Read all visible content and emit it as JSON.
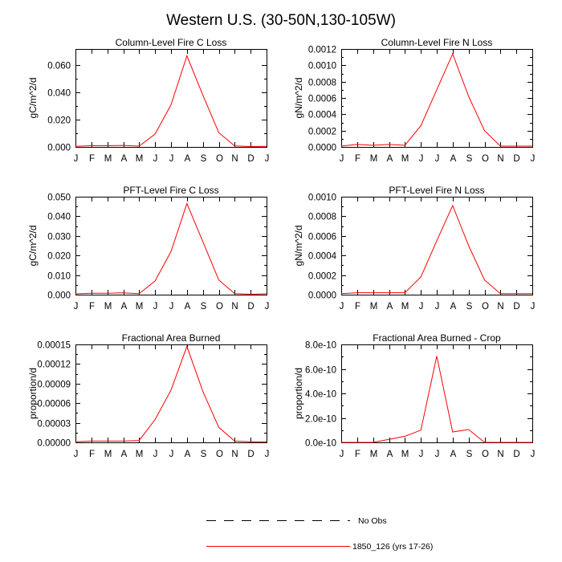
{
  "figure": {
    "title": "Western U.S. (30-50N,130-105W)"
  },
  "legend": {
    "entries": [
      {
        "name": "No Obs",
        "style": "dashed",
        "color": "#000000"
      },
      {
        "name": "1850_126 (yrs 17-26)",
        "style": "solid",
        "color": "#ff0000"
      }
    ]
  },
  "chart_data": [
    {
      "type": "line",
      "title": "Column-Level Fire C Loss",
      "xlabel": "",
      "ylabel": "gC/m^2/d",
      "categories": [
        "J",
        "F",
        "M",
        "A",
        "M",
        "J",
        "J",
        "A",
        "S",
        "O",
        "N",
        "D",
        "J"
      ],
      "ylim": [
        0,
        0.072
      ],
      "yticks": [
        0,
        0.02,
        0.04,
        0.06
      ],
      "ytick_labels": [
        "0.000",
        "0.020",
        "0.040",
        "0.060"
      ],
      "series": [
        {
          "name": "1850_126 (yrs 17-26)",
          "color": "#ff0000",
          "values": [
            0.0005,
            0.0009,
            0.0009,
            0.0011,
            0.0006,
            0.0095,
            0.031,
            0.067,
            0.038,
            0.0105,
            0.0007,
            0.0003,
            0.0005
          ]
        }
      ]
    },
    {
      "type": "line",
      "title": "Column-Level Fire N Loss",
      "xlabel": "",
      "ylabel": "gN/m^2/d",
      "categories": [
        "J",
        "F",
        "M",
        "A",
        "M",
        "J",
        "J",
        "A",
        "S",
        "O",
        "N",
        "D",
        "J"
      ],
      "ylim": [
        0,
        0.0012
      ],
      "yticks": [
        0,
        0.0002,
        0.0004,
        0.0006,
        0.0008,
        0.001,
        0.0012
      ],
      "ytick_labels": [
        "0.0000",
        "0.0002",
        "0.0004",
        "0.0006",
        "0.0008",
        "0.0010",
        "0.0012"
      ],
      "series": [
        {
          "name": "1850_126 (yrs 17-26)",
          "color": "#ff0000",
          "values": [
            1e-05,
            3e-05,
            2e-05,
            3e-05,
            2e-05,
            0.00026,
            0.0007,
            0.00114,
            0.00062,
            0.0002,
            1e-05,
            1e-05,
            1e-05
          ]
        }
      ]
    },
    {
      "type": "line",
      "title": "PFT-Level Fire C Loss",
      "xlabel": "",
      "ylabel": "gC/m^2/d",
      "categories": [
        "J",
        "F",
        "M",
        "A",
        "M",
        "J",
        "J",
        "A",
        "S",
        "O",
        "N",
        "D",
        "J"
      ],
      "ylim": [
        0,
        0.05
      ],
      "yticks": [
        0,
        0.01,
        0.02,
        0.03,
        0.04,
        0.05
      ],
      "ytick_labels": [
        "0.000",
        "0.010",
        "0.020",
        "0.030",
        "0.040",
        "0.050"
      ],
      "series": [
        {
          "name": "1850_126 (yrs 17-26)",
          "color": "#ff0000",
          "values": [
            0.0004,
            0.0007,
            0.0007,
            0.0009,
            0.0005,
            0.007,
            0.022,
            0.0465,
            0.027,
            0.0075,
            0.0005,
            0.0002,
            0.0004
          ]
        }
      ]
    },
    {
      "type": "line",
      "title": "PFT-Level Fire N Loss",
      "xlabel": "",
      "ylabel": "gN/m^2/d",
      "categories": [
        "J",
        "F",
        "M",
        "A",
        "M",
        "J",
        "J",
        "A",
        "S",
        "O",
        "N",
        "D",
        "J"
      ],
      "ylim": [
        0,
        0.001
      ],
      "yticks": [
        0,
        0.0002,
        0.0004,
        0.0006,
        0.0008,
        0.001
      ],
      "ytick_labels": [
        "0.0000",
        "0.0002",
        "0.0004",
        "0.0006",
        "0.0008",
        "0.0010"
      ],
      "series": [
        {
          "name": "1850_126 (yrs 17-26)",
          "color": "#ff0000",
          "values": [
            1e-05,
            2e-05,
            2e-05,
            2e-05,
            2e-05,
            0.00018,
            0.00055,
            0.00091,
            0.0005,
            0.00015,
            1e-05,
            1e-05,
            1e-05
          ]
        }
      ]
    },
    {
      "type": "line",
      "title": "Fractional Area Burned",
      "xlabel": "",
      "ylabel": "proportion/d",
      "categories": [
        "J",
        "F",
        "M",
        "A",
        "M",
        "J",
        "J",
        "A",
        "S",
        "O",
        "N",
        "D",
        "J"
      ],
      "ylim": [
        0,
        0.00015
      ],
      "yticks": [
        0,
        3e-05,
        6e-05,
        9e-05,
        0.00012,
        0.00015
      ],
      "ytick_labels": [
        "0.00000",
        "0.00003",
        "0.00006",
        "0.00009",
        "0.00012",
        "0.00015"
      ],
      "series": [
        {
          "name": "1850_126 (yrs 17-26)",
          "color": "#ff0000",
          "values": [
            1e-06,
            2e-06,
            2e-06,
            2e-06,
            3e-06,
            3.5e-05,
            8e-05,
            0.000147,
            7.8e-05,
            2.3e-05,
            2e-06,
            1e-06,
            1e-06
          ]
        }
      ]
    },
    {
      "type": "line",
      "title": "Fractional Area Burned - Crop",
      "xlabel": "",
      "ylabel": "proportion/d",
      "categories": [
        "J",
        "F",
        "M",
        "A",
        "M",
        "J",
        "J",
        "A",
        "S",
        "O",
        "N",
        "D",
        "J"
      ],
      "ylim": [
        0,
        8e-10
      ],
      "yticks": [
        0,
        2e-10,
        4e-10,
        6e-10,
        8e-10
      ],
      "ytick_labels": [
        "0.0e-10",
        "2.0e-10",
        "4.0e-10",
        "6.0e-10",
        "8.0e-10"
      ],
      "series": [
        {
          "name": "1850_126 (yrs 17-26)",
          "color": "#ff0000",
          "values": [
            0,
            0,
            0,
            2.5e-11,
            5e-11,
            1e-10,
            7.05e-10,
            8.5e-11,
            1.05e-10,
            0,
            0,
            0,
            0
          ]
        }
      ]
    }
  ]
}
